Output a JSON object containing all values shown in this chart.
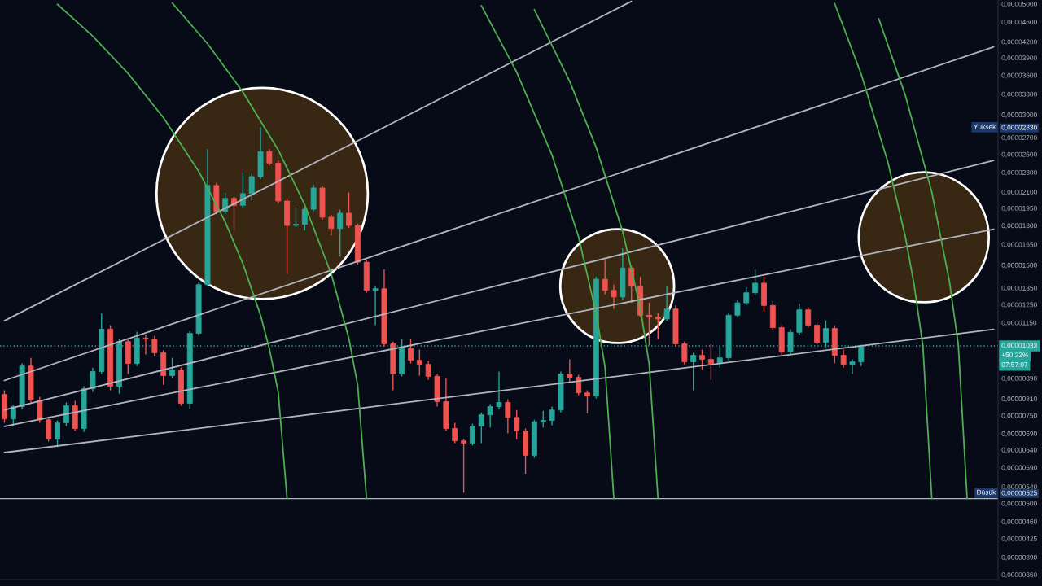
{
  "chart_data": {
    "type": "candlestick",
    "categories": [
      null,
      null,
      null,
      null,
      null,
      null,
      null,
      null,
      null,
      null,
      null,
      null,
      null,
      null,
      null,
      null,
      null,
      null,
      null,
      null,
      null,
      null,
      null,
      null,
      null,
      null,
      null,
      null,
      null,
      null,
      null,
      null,
      null,
      null,
      null,
      null,
      null,
      null,
      null,
      null,
      null,
      null,
      null,
      null,
      null,
      null,
      null,
      null,
      null,
      null,
      null,
      null,
      null,
      null,
      null,
      null,
      null,
      null,
      null,
      null,
      null,
      null,
      null,
      null,
      null,
      null,
      null,
      null,
      null,
      null,
      null,
      null,
      null,
      null,
      null,
      null,
      null,
      null,
      null,
      null,
      null,
      null,
      null,
      null,
      null,
      null,
      null,
      null,
      null,
      null,
      null,
      null,
      null,
      null,
      null,
      null,
      null,
      null,
      null,
      null,
      null,
      null,
      null,
      null,
      null,
      null,
      null,
      null,
      null,
      null,
      null,
      null,
      null
    ],
    "ohlc": [
      [
        8.26e-06,
        8.42e-06,
        7.25e-06,
        7.38e-06
      ],
      [
        7.38e-06,
        7.87e-06,
        7.14e-06,
        7.81e-06
      ],
      [
        7.81e-06,
        9.53e-06,
        7.72e-06,
        9.42e-06
      ],
      [
        9.42e-06,
        9.78e-06,
        7.96e-06,
        8.05e-06
      ],
      [
        8.05e-06,
        8.17e-06,
        7.25e-06,
        7.35e-06
      ],
      [
        7.35e-06,
        7.46e-06,
        6.65e-06,
        6.72e-06
      ],
      [
        6.72e-06,
        7.33e-06,
        6.48e-06,
        7.25e-06
      ],
      [
        7.25e-06,
        7.96e-06,
        7.14e-06,
        7.84e-06
      ],
      [
        7.84e-06,
        8.02e-06,
        6.98e-06,
        7.06e-06
      ],
      [
        7.06e-06,
        8.58e-06,
        6.95e-06,
        8.48e-06
      ],
      [
        8.48e-06,
        9.35e-06,
        8.36e-06,
        9.18e-06
      ],
      [
        9.18e-06,
        1.2e-05,
        9.08e-06,
        1.116e-05
      ],
      [
        1.116e-05,
        1.137e-05,
        8.42e-06,
        8.58e-06
      ],
      [
        8.58e-06,
        1.066e-05,
        8.29e-06,
        1.054e-05
      ],
      [
        1.054e-05,
        1.071e-05,
        9.08e-06,
        9.53e-06
      ],
      [
        9.53e-06,
        1.103e-05,
        9.42e-06,
        1.071e-05
      ],
      [
        1.071e-05,
        1.087e-05,
        9.93e-06,
        1.066e-05
      ],
      [
        1.066e-05,
        1.083e-05,
        9.86e-06,
        1.001e-05
      ],
      [
        1.001e-05,
        1.012e-05,
        8.64e-06,
        9.01e-06
      ],
      [
        9.01e-06,
        9.78e-06,
        8.91e-06,
        9.25e-06
      ],
      [
        9.25e-06,
        9.35e-06,
        7.84e-06,
        7.93e-06
      ],
      [
        7.93e-06,
        1.107e-05,
        7.72e-06,
        1.095e-05
      ],
      [
        1.095e-05,
        1.39e-05,
        1.083e-05,
        1.37e-05
      ],
      [
        1.37e-05,
        2.56e-05,
        1.36e-05,
        2.165e-05
      ],
      [
        2.165e-05,
        2.19e-05,
        1.895e-05,
        1.92e-05
      ],
      [
        1.92e-05,
        2.095e-05,
        1.895e-05,
        2.04e-05
      ],
      [
        2.04e-05,
        2.06e-05,
        1.76e-05,
        1.975e-05
      ],
      [
        1.975e-05,
        2.3e-05,
        1.955e-05,
        2.085e-05
      ],
      [
        2.085e-05,
        2.285e-05,
        2.02e-05,
        2.255e-05
      ],
      [
        2.255e-05,
        2.83e-05,
        2.23e-05,
        2.53e-05
      ],
      [
        2.53e-05,
        2.56e-05,
        2.375e-05,
        2.4e-05
      ],
      [
        2.4e-05,
        2.43e-05,
        1.99e-05,
        2.015e-05
      ],
      [
        2.015e-05,
        2.04e-05,
        1.44e-05,
        1.8e-05
      ],
      [
        1.8e-05,
        1.955e-05,
        1.785e-05,
        1.81e-05
      ],
      [
        1.81e-05,
        1.96e-05,
        1.76e-05,
        1.94e-05
      ],
      [
        1.94e-05,
        2.17e-05,
        1.92e-05,
        2.14e-05
      ],
      [
        2.14e-05,
        2.16e-05,
        1.85e-05,
        1.87e-05
      ],
      [
        1.87e-05,
        1.89e-05,
        1.72e-05,
        1.775e-05
      ],
      [
        1.775e-05,
        1.935e-05,
        1.56e-05,
        1.905e-05
      ],
      [
        1.905e-05,
        2.095e-05,
        1.78e-05,
        1.8e-05
      ],
      [
        1.8e-05,
        1.815e-05,
        1.5e-05,
        1.52e-05
      ],
      [
        1.52e-05,
        1.54e-05,
        1.32e-05,
        1.335e-05
      ],
      [
        1.335e-05,
        1.36e-05,
        1.137e-05,
        1.345e-05
      ],
      [
        1.345e-05,
        1.47e-05,
        1.031e-05,
        1.043e-05
      ],
      [
        1.043e-05,
        1.054e-05,
        8.42e-06,
        9.08e-06
      ],
      [
        9.08e-06,
        1.066e-05,
        8.98e-06,
        1.02e-05
      ],
      [
        1.02e-05,
        1.066e-05,
        9.53e-06,
        9.67e-06
      ],
      [
        9.67e-06,
        1.016e-05,
        9.01e-06,
        9.49e-06
      ],
      [
        9.49e-06,
        9.64e-06,
        8.84e-06,
        8.98e-06
      ],
      [
        8.98e-06,
        9.08e-06,
        7.81e-06,
        7.99e-06
      ],
      [
        7.99e-06,
        8.91e-06,
        6.98e-06,
        7.06e-06
      ],
      [
        7.06e-06,
        7.25e-06,
        6.6e-06,
        6.67e-06
      ],
      [
        6.67e-06,
        6.72e-06,
        5.25e-06,
        6.6e-06
      ],
      [
        6.6e-06,
        7.22e-06,
        6.53e-06,
        7.14e-06
      ],
      [
        7.14e-06,
        7.6e-06,
        6.6e-06,
        7.52e-06
      ],
      [
        7.52e-06,
        7.9e-06,
        7.09e-06,
        7.81e-06
      ],
      [
        7.81e-06,
        9.18e-06,
        7.72e-06,
        7.96e-06
      ],
      [
        7.96e-06,
        8.08e-06,
        6.9e-06,
        7.43e-06
      ],
      [
        7.43e-06,
        7.69e-06,
        6.72e-06,
        6.98e-06
      ],
      [
        6.98e-06,
        7.06e-06,
        5.72e-06,
        6.24e-06
      ],
      [
        6.24e-06,
        7.35e-06,
        6.17e-06,
        7.28e-06
      ],
      [
        7.28e-06,
        7.66e-06,
        7.09e-06,
        7.33e-06
      ],
      [
        7.33e-06,
        7.81e-06,
        7.17e-06,
        7.69e-06
      ],
      [
        7.69e-06,
        9.18e-06,
        7.6e-06,
        9.08e-06
      ],
      [
        9.08e-06,
        9.71e-06,
        8.74e-06,
        8.94e-06
      ],
      [
        8.94e-06,
        9.04e-06,
        8.23e-06,
        8.32e-06
      ],
      [
        8.32e-06,
        8.42e-06,
        7.57e-06,
        8.2e-06
      ],
      [
        8.2e-06,
        1.42e-05,
        8.11e-06,
        1.405e-05
      ],
      [
        1.405e-05,
        1.53e-05,
        1.31e-05,
        1.335e-05
      ],
      [
        1.335e-05,
        1.37e-05,
        1.225e-05,
        1.295e-05
      ],
      [
        1.295e-05,
        1.62e-05,
        1.28e-05,
        1.48e-05
      ],
      [
        1.48e-05,
        1.495e-05,
        1.26e-05,
        1.36e-05
      ],
      [
        1.36e-05,
        1.42e-05,
        1.18e-05,
        1.19e-05
      ],
      [
        1.19e-05,
        1.26e-05,
        1.035e-05,
        1.18e-05
      ],
      [
        1.18e-05,
        1.2e-05,
        1.066e-05,
        1.17e-05
      ],
      [
        1.17e-05,
        1.36e-05,
        1.158e-05,
        1.225e-05
      ],
      [
        1.225e-05,
        1.245e-05,
        1.031e-05,
        1.043e-05
      ],
      [
        1.043e-05,
        1.054e-05,
        9.49e-06,
        9.6e-06
      ],
      [
        9.6e-06,
        1.001e-05,
        8.42e-06,
        9.89e-06
      ],
      [
        9.89e-06,
        1.016e-05,
        9.25e-06,
        9.71e-06
      ],
      [
        9.71e-06,
        1.043e-05,
        8.84e-06,
        9.53e-06
      ],
      [
        9.53e-06,
        1.035e-05,
        9.35e-06,
        9.78e-06
      ],
      [
        9.78e-06,
        1.205e-05,
        9.67e-06,
        1.19e-05
      ],
      [
        1.19e-05,
        1.275e-05,
        1.18e-05,
        1.26e-05
      ],
      [
        1.26e-05,
        1.355e-05,
        1.245e-05,
        1.32e-05
      ],
      [
        1.32e-05,
        1.47e-05,
        1.305e-05,
        1.38e-05
      ],
      [
        1.38e-05,
        1.42e-05,
        1.21e-05,
        1.245e-05
      ],
      [
        1.245e-05,
        1.27e-05,
        1.112e-05,
        1.124e-05
      ],
      [
        1.124e-05,
        1.137e-05,
        9.93e-06,
        1.005e-05
      ],
      [
        1.005e-05,
        1.116e-05,
        9.89e-06,
        1.1e-05
      ],
      [
        1.1e-05,
        1.255e-05,
        1.087e-05,
        1.22e-05
      ],
      [
        1.22e-05,
        1.235e-05,
        1.124e-05,
        1.137e-05
      ],
      [
        1.137e-05,
        1.15e-05,
        1.039e-05,
        1.05e-05
      ],
      [
        1.05e-05,
        1.162e-05,
        1.027e-05,
        1.12e-05
      ],
      [
        1.12e-05,
        1.137e-05,
        9.53e-06,
        9.89e-06
      ],
      [
        9.89e-06,
        1.016e-05,
        9.35e-06,
        9.49e-06
      ],
      [
        9.49e-06,
        9.71e-06,
        9.08e-06,
        9.6e-06
      ],
      [
        9.6e-06,
        1.039e-05,
        9.42e-06,
        1.033e-05
      ],
      null,
      null,
      null,
      null,
      null,
      null,
      null,
      null,
      null,
      null,
      null,
      null,
      null,
      null,
      null
    ],
    "colors": [
      "#ef5350",
      "#26a69a",
      "#26a69a",
      "#ef5350",
      "#ef5350",
      "#ef5350",
      "#26a69a",
      "#26a69a",
      "#ef5350",
      "#26a69a",
      "#26a69a",
      "#26a69a",
      "#ef5350",
      "#26a69a",
      "#ef5350",
      "#26a69a",
      "#ef5350",
      "#ef5350",
      "#ef5350",
      "#26a69a",
      "#ef5350",
      "#26a69a",
      "#26a69a",
      "#26a69a",
      "#ef5350",
      "#26a69a",
      "#ef5350",
      "#26a69a",
      "#26a69a",
      "#26a69a",
      "#ef5350",
      "#ef5350",
      "#ef5350",
      "#26a69a",
      "#26a69a",
      "#26a69a",
      "#ef5350",
      "#ef5350",
      "#26a69a",
      "#ef5350",
      "#ef5350",
      "#ef5350",
      "#26a69a",
      "#ef5350",
      "#ef5350",
      "#26a69a",
      "#ef5350",
      "#ef5350",
      "#ef5350",
      "#ef5350",
      "#ef5350",
      "#ef5350",
      "#ef5350",
      "#26a69a",
      "#26a69a",
      "#26a69a",
      "#26a69a",
      "#ef5350",
      "#ef5350",
      "#ef5350",
      "#26a69a",
      "#26a69a",
      "#26a69a",
      "#26a69a",
      "#ef5350",
      "#ef5350",
      "#ef5350",
      "#26a69a",
      "#ef5350",
      "#ef5350",
      "#26a69a",
      "#ef5350",
      "#ef5350",
      "#ef5350",
      "#ef5350",
      "#26a69a",
      "#ef5350",
      "#ef5350",
      "#26a69a",
      "#ef5350",
      "#ef5350",
      "#26a69a",
      "#26a69a",
      "#26a69a",
      "#26a69a",
      "#26a69a",
      "#ef5350",
      "#ef5350",
      "#ef5350",
      "#26a69a",
      "#26a69a",
      "#ef5350",
      "#ef5350",
      "#26a69a",
      "#ef5350",
      "#ef5350",
      "#26a69a",
      "#26a69a",
      null,
      null,
      null,
      null,
      null,
      null,
      null,
      null,
      null,
      null,
      null,
      null,
      null,
      null,
      null
    ],
    "series": [
      {
        "type": "line",
        "color": "#b2b5be",
        "values": [
          1.16e-05,
          null,
          null,
          null,
          null,
          null,
          null,
          null,
          null,
          null,
          null,
          null,
          null,
          null,
          null,
          null,
          null,
          null,
          null,
          null,
          null,
          null,
          null,
          null,
          null,
          null,
          null,
          null,
          null,
          null,
          null,
          null,
          null,
          null,
          null,
          null,
          null,
          null,
          null,
          null,
          null,
          null,
          null,
          null,
          null,
          null,
          null,
          null,
          null,
          null,
          null,
          null,
          null,
          null,
          null,
          null,
          null,
          null,
          null,
          null,
          null,
          null,
          null,
          null,
          null,
          null,
          null,
          null,
          null,
          null,
          null,
          5.06e-05,
          null,
          null,
          null,
          null,
          null,
          null,
          null,
          null,
          null,
          null,
          null,
          null,
          null,
          null,
          null,
          null,
          null,
          null,
          null,
          null,
          null,
          null,
          null,
          null,
          null,
          null,
          null,
          null,
          null,
          null,
          null,
          null,
          null,
          null,
          null,
          null,
          null,
          null,
          null,
          null,
          null
        ]
      },
      {
        "type": "line",
        "color": "#b2b5be",
        "values": [
          8.81e-06,
          null,
          null,
          null,
          null,
          null,
          null,
          null,
          null,
          null,
          null,
          null,
          null,
          null,
          null,
          null,
          null,
          null,
          null,
          null,
          null,
          null,
          null,
          null,
          null,
          null,
          null,
          null,
          null,
          null,
          null,
          null,
          null,
          null,
          null,
          null,
          null,
          null,
          null,
          null,
          null,
          null,
          null,
          null,
          null,
          null,
          null,
          null,
          null,
          null,
          null,
          null,
          null,
          null,
          null,
          null,
          null,
          null,
          null,
          null,
          null,
          null,
          null,
          null,
          null,
          null,
          null,
          null,
          null,
          null,
          null,
          null,
          null,
          null,
          null,
          null,
          null,
          null,
          null,
          null,
          null,
          null,
          null,
          null,
          null,
          null,
          null,
          null,
          null,
          null,
          null,
          null,
          null,
          null,
          null,
          null,
          null,
          null,
          null,
          null,
          null,
          null,
          null,
          null,
          null,
          null,
          null,
          null,
          null,
          null,
          null,
          null,
          4.1e-05
        ]
      },
      {
        "type": "line",
        "color": "#b2b5be",
        "values": [
          7.69e-06,
          null,
          null,
          null,
          null,
          null,
          null,
          null,
          null,
          null,
          null,
          null,
          null,
          null,
          null,
          null,
          null,
          null,
          null,
          null,
          null,
          null,
          null,
          null,
          null,
          null,
          null,
          null,
          null,
          null,
          null,
          null,
          null,
          null,
          null,
          null,
          null,
          null,
          null,
          null,
          null,
          null,
          null,
          null,
          null,
          null,
          null,
          null,
          null,
          null,
          null,
          null,
          null,
          null,
          null,
          null,
          null,
          null,
          null,
          null,
          null,
          null,
          null,
          null,
          null,
          null,
          null,
          null,
          null,
          null,
          null,
          null,
          null,
          null,
          null,
          null,
          null,
          null,
          null,
          null,
          null,
          null,
          null,
          null,
          null,
          null,
          null,
          null,
          null,
          null,
          null,
          null,
          null,
          null,
          null,
          null,
          null,
          null,
          null,
          null,
          null,
          null,
          null,
          null,
          null,
          null,
          null,
          null,
          null,
          null,
          null,
          null,
          2.43e-05
        ]
      },
      {
        "type": "line",
        "color": "#b2b5be",
        "values": [
          7.13e-06,
          null,
          null,
          null,
          null,
          null,
          null,
          null,
          null,
          null,
          null,
          null,
          null,
          null,
          null,
          null,
          null,
          null,
          null,
          null,
          null,
          null,
          null,
          null,
          null,
          null,
          null,
          null,
          null,
          null,
          null,
          null,
          null,
          null,
          null,
          null,
          null,
          null,
          null,
          null,
          null,
          null,
          null,
          null,
          null,
          null,
          null,
          null,
          null,
          null,
          null,
          null,
          null,
          null,
          null,
          null,
          null,
          null,
          null,
          null,
          null,
          null,
          null,
          null,
          null,
          null,
          null,
          null,
          null,
          null,
          null,
          null,
          null,
          null,
          null,
          null,
          null,
          null,
          null,
          null,
          null,
          null,
          null,
          null,
          null,
          null,
          null,
          null,
          null,
          null,
          null,
          null,
          null,
          null,
          null,
          null,
          null,
          null,
          null,
          null,
          null,
          null,
          null,
          null,
          null,
          null,
          null,
          null,
          null,
          null,
          null,
          null,
          1.77e-05
        ]
      },
      {
        "type": "line",
        "color": "#b2b5be",
        "values": [
          6.32e-06,
          null,
          null,
          null,
          null,
          null,
          null,
          null,
          null,
          null,
          null,
          null,
          null,
          null,
          null,
          null,
          null,
          null,
          null,
          null,
          null,
          null,
          null,
          null,
          null,
          null,
          null,
          null,
          null,
          null,
          null,
          null,
          null,
          null,
          null,
          null,
          null,
          null,
          null,
          null,
          null,
          null,
          null,
          null,
          null,
          null,
          null,
          null,
          null,
          null,
          null,
          null,
          null,
          null,
          null,
          null,
          null,
          null,
          null,
          null,
          null,
          null,
          null,
          null,
          null,
          null,
          null,
          null,
          null,
          null,
          null,
          null,
          null,
          null,
          null,
          null,
          null,
          null,
          null,
          null,
          null,
          null,
          null,
          null,
          null,
          null,
          null,
          null,
          null,
          null,
          null,
          null,
          null,
          null,
          null,
          null,
          null,
          null,
          null,
          null,
          null,
          null,
          null,
          null,
          null,
          null,
          null,
          null,
          null,
          null,
          null,
          null,
          1.115e-05
        ]
      },
      {
        "type": "line",
        "color": "#4caf50",
        "values": [
          null,
          null,
          null,
          null,
          null,
          null,
          4.99e-05,
          null,
          null,
          null,
          4.31e-05,
          null,
          null,
          null,
          3.63e-05,
          null,
          null,
          null,
          2.96e-05,
          null,
          null,
          null,
          2.31e-05,
          null,
          null,
          1.83e-05,
          null,
          1.51e-05,
          null,
          1.19e-05,
          1.02e-05,
          8.36e-06,
          5.11e-06,
          null,
          null,
          null,
          null,
          null,
          null,
          null,
          null,
          null,
          null,
          null,
          null,
          null,
          null,
          null,
          null,
          null,
          null,
          null,
          null,
          null,
          null,
          null,
          null,
          null,
          null,
          null,
          null,
          null,
          null,
          null,
          null,
          null,
          null,
          null,
          null,
          null,
          null,
          null,
          null,
          null,
          null,
          null,
          null,
          null,
          null,
          null,
          null,
          null,
          null,
          null,
          null,
          null,
          null,
          null,
          null,
          null,
          null,
          null,
          null,
          null,
          null,
          null,
          null,
          null,
          null,
          null,
          null,
          null,
          null,
          null,
          null,
          null,
          null,
          null,
          null,
          null,
          null,
          null,
          null
        ]
      },
      {
        "type": "line",
        "color": "#4caf50",
        "values": [
          null,
          null,
          null,
          null,
          null,
          null,
          null,
          null,
          null,
          null,
          null,
          null,
          null,
          null,
          null,
          null,
          null,
          null,
          null,
          5.02e-05,
          null,
          null,
          null,
          4.16e-05,
          null,
          null,
          null,
          3.33e-05,
          null,
          null,
          null,
          2.55e-05,
          null,
          null,
          1.98e-05,
          null,
          null,
          1.44e-05,
          null,
          1.07e-05,
          8.62e-06,
          5.11e-06,
          null,
          null,
          null,
          null,
          null,
          null,
          null,
          null,
          null,
          null,
          null,
          null,
          null,
          null,
          null,
          null,
          null,
          null,
          null,
          null,
          null,
          null,
          null,
          null,
          null,
          null,
          null,
          null,
          null,
          null,
          null,
          null,
          null,
          null,
          null,
          null,
          null,
          null,
          null,
          null,
          null,
          null,
          null,
          null,
          null,
          null,
          null,
          null,
          null,
          null,
          null,
          null,
          null,
          null,
          null,
          null,
          null,
          null,
          null,
          null,
          null,
          null,
          null,
          null,
          null,
          null,
          null,
          null,
          null,
          null,
          null
        ]
      },
      {
        "type": "line",
        "color": "#4caf50",
        "values": [
          null,
          null,
          null,
          null,
          null,
          null,
          null,
          null,
          null,
          null,
          null,
          null,
          null,
          null,
          null,
          null,
          null,
          null,
          null,
          null,
          null,
          null,
          null,
          null,
          null,
          null,
          null,
          null,
          null,
          null,
          null,
          null,
          null,
          null,
          null,
          null,
          null,
          null,
          null,
          null,
          null,
          null,
          null,
          null,
          null,
          null,
          null,
          null,
          null,
          null,
          null,
          null,
          null,
          null,
          4.96e-05,
          null,
          null,
          null,
          3.65e-05,
          null,
          null,
          null,
          2.49e-05,
          null,
          null,
          1.71e-05,
          null,
          1.2e-05,
          9.38e-06,
          5.11e-06,
          null,
          null,
          null,
          null,
          null,
          null,
          null,
          null,
          null,
          null,
          null,
          null,
          null,
          null,
          null,
          null,
          null,
          null,
          null,
          null,
          null,
          null,
          null,
          null,
          null,
          null,
          null,
          null,
          null,
          null,
          null,
          null,
          null,
          null,
          null,
          null,
          null,
          null,
          null,
          null,
          null,
          null,
          null
        ]
      },
      {
        "type": "line",
        "color": "#4caf50",
        "values": [
          null,
          null,
          null,
          null,
          null,
          null,
          null,
          null,
          null,
          null,
          null,
          null,
          null,
          null,
          null,
          null,
          null,
          null,
          null,
          null,
          null,
          null,
          null,
          null,
          null,
          null,
          null,
          null,
          null,
          null,
          null,
          null,
          null,
          null,
          null,
          null,
          null,
          null,
          null,
          null,
          null,
          null,
          null,
          null,
          null,
          null,
          null,
          null,
          null,
          null,
          null,
          null,
          null,
          null,
          null,
          null,
          null,
          null,
          null,
          null,
          4.87e-05,
          null,
          null,
          null,
          3.5e-05,
          null,
          null,
          2.58e-05,
          null,
          null,
          1.75e-05,
          null,
          1.23e-05,
          9.51e-06,
          5.11e-06,
          null,
          null,
          null,
          null,
          null,
          null,
          null,
          null,
          null,
          null,
          null,
          null,
          null,
          null,
          null,
          null,
          null,
          null,
          null,
          null,
          null,
          null,
          null,
          null,
          null,
          null,
          null,
          null,
          null,
          null,
          null,
          null,
          null,
          null,
          null,
          null,
          null,
          null
        ]
      },
      {
        "type": "line",
        "color": "#4caf50",
        "values": [
          null,
          null,
          null,
          null,
          null,
          null,
          null,
          null,
          null,
          null,
          null,
          null,
          null,
          null,
          null,
          null,
          null,
          null,
          null,
          null,
          null,
          null,
          null,
          null,
          null,
          null,
          null,
          null,
          null,
          null,
          null,
          null,
          null,
          null,
          null,
          null,
          null,
          null,
          null,
          null,
          null,
          null,
          null,
          null,
          null,
          null,
          null,
          null,
          null,
          null,
          null,
          null,
          null,
          null,
          null,
          null,
          null,
          null,
          null,
          null,
          null,
          null,
          null,
          null,
          null,
          null,
          null,
          null,
          null,
          null,
          null,
          null,
          null,
          null,
          null,
          null,
          null,
          null,
          null,
          null,
          null,
          null,
          null,
          null,
          null,
          null,
          null,
          null,
          null,
          null,
          null,
          null,
          null,
          null,
          5.01e-05,
          null,
          null,
          3.62e-05,
          null,
          null,
          2.42e-05,
          null,
          1.71e-05,
          1.37e-05,
          1.03e-05,
          5.11e-06,
          null,
          null,
          null,
          null,
          null,
          null,
          null
        ]
      },
      {
        "type": "line",
        "color": "#4caf50",
        "values": [
          null,
          null,
          null,
          null,
          null,
          null,
          null,
          null,
          null,
          null,
          null,
          null,
          null,
          null,
          null,
          null,
          null,
          null,
          null,
          null,
          null,
          null,
          null,
          null,
          null,
          null,
          null,
          null,
          null,
          null,
          null,
          null,
          null,
          null,
          null,
          null,
          null,
          null,
          null,
          null,
          null,
          null,
          null,
          null,
          null,
          null,
          null,
          null,
          null,
          null,
          null,
          null,
          null,
          null,
          null,
          null,
          null,
          null,
          null,
          null,
          null,
          null,
          null,
          null,
          null,
          null,
          null,
          null,
          null,
          null,
          null,
          null,
          null,
          null,
          null,
          null,
          null,
          null,
          null,
          null,
          null,
          null,
          null,
          null,
          null,
          null,
          null,
          null,
          null,
          null,
          null,
          null,
          null,
          null,
          null,
          null,
          null,
          null,
          null,
          4.67e-05,
          null,
          null,
          3.28e-05,
          null,
          null,
          2.1e-05,
          null,
          1.39e-05,
          1.04e-05,
          5.11e-06,
          null,
          null,
          null
        ]
      }
    ],
    "log": "y",
    "ylim": [
      3.52e-06,
      5.09e-05
    ],
    "yticks": [
      {
        "value": 5e-05,
        "label": "0,00005000"
      },
      {
        "value": 4.6e-05,
        "label": "0,00004600"
      },
      {
        "value": 4.2e-05,
        "label": "0,00004200"
      },
      {
        "value": 3.9e-05,
        "label": "0,00003900"
      },
      {
        "value": 3.6e-05,
        "label": "0,00003600"
      },
      {
        "value": 3.3e-05,
        "label": "0,00003300"
      },
      {
        "value": 3e-05,
        "label": "0,00003000"
      },
      {
        "value": 2.83e-05,
        "label": "0,00002830"
      },
      {
        "value": 2.7e-05,
        "label": "0,00002700"
      },
      {
        "value": 2.5e-05,
        "label": "0,00002500"
      },
      {
        "value": 2.3e-05,
        "label": "0,00002300"
      },
      {
        "value": 2.1e-05,
        "label": "0,00002100"
      },
      {
        "value": 1.95e-05,
        "label": "0,00001950"
      },
      {
        "value": 1.8e-05,
        "label": "0,00001800"
      },
      {
        "value": 1.65e-05,
        "label": "0,00001650"
      },
      {
        "value": 1.5e-05,
        "label": "0,00001500"
      },
      {
        "value": 1.35e-05,
        "label": "0,00001350"
      },
      {
        "value": 1.25e-05,
        "label": "0,00001250"
      },
      {
        "value": 1.15e-05,
        "label": "0,00001150"
      },
      {
        "value": 8.9e-06,
        "label": "0,00000890"
      },
      {
        "value": 8.1e-06,
        "label": "0,00000810"
      },
      {
        "value": 7.5e-06,
        "label": "0,00000750"
      },
      {
        "value": 6.9e-06,
        "label": "0,00000690"
      },
      {
        "value": 6.4e-06,
        "label": "0,00000640"
      },
      {
        "value": 5.9e-06,
        "label": "0,00000590"
      },
      {
        "value": 5.4e-06,
        "label": "0,00000540"
      },
      {
        "value": 5.25e-06,
        "label": "0,00000525"
      },
      {
        "value": 5e-06,
        "label": "0,00000500"
      },
      {
        "value": 4.6e-06,
        "label": "0,00000460"
      },
      {
        "value": 4.25e-06,
        "label": "0,00000425"
      },
      {
        "value": 3.9e-06,
        "label": "0,00000390"
      },
      {
        "value": 3.6e-06,
        "label": "0,00000360"
      }
    ],
    "tick_labels": "y",
    "ref_lines": [
      {
        "axis": "y",
        "value": 1.033e-05,
        "label": "0,00001033",
        "color": "#26a69a",
        "line_style": "dotted"
      },
      {
        "axis": "y",
        "value": 5.11e-06,
        "color": "#b2b5be"
      }
    ],
    "annotations": [
      "+50,22%",
      "07:57:07",
      {
        "text": "Yüksek",
        "y": 2.83e-05
      },
      {
        "text": "Düşük",
        "y": 5.25e-06
      }
    ]
  }
}
